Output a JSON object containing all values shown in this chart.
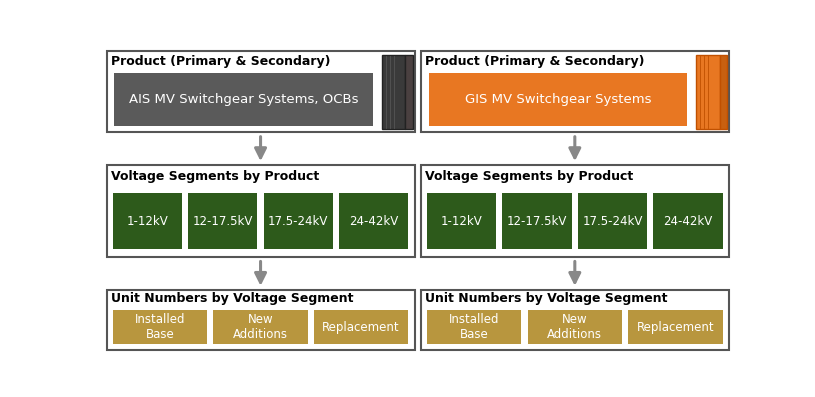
{
  "bg_color": "#ffffff",
  "arrow_color": "#888888",
  "dark_gray_box": "#5a5a5a",
  "orange_box": "#E87722",
  "green_box": "#2D5A1B",
  "tan_box": "#B8963E",
  "white_text": "#ffffff",
  "black_text": "#000000",
  "left_title": "Product (Primary & Secondary)",
  "right_title": "Product (Primary & Secondary)",
  "left_product": "AIS MV Switchgear Systems, OCBs",
  "right_product": "GIS MV Switchgear Systems",
  "voltage_label": "Voltage Segments by Product",
  "voltage_segments": [
    "1-12kV",
    "12-17.5kV",
    "17.5-24kV",
    "24-42kV"
  ],
  "unit_label": "Unit Numbers by Voltage Segment",
  "unit_segments": [
    "Installed\nBase",
    "New\nAdditions",
    "Replacement"
  ],
  "border_color": "#555555"
}
